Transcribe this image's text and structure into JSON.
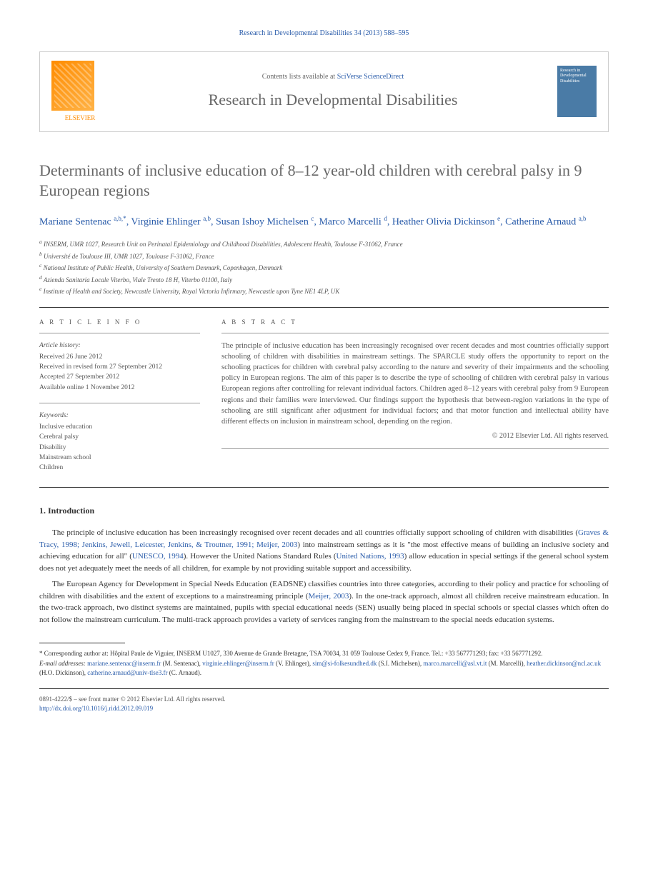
{
  "header": {
    "citation": "Research in Developmental Disabilities 34 (2013) 588–595",
    "contents_prefix": "Contents lists available at ",
    "contents_link": "SciVerse ScienceDirect",
    "journal_name": "Research in Developmental Disabilities",
    "publisher": "ELSEVIER",
    "cover_text": "Research in Developmental Disabilities"
  },
  "article": {
    "title": "Determinants of inclusive education of 8–12 year-old children with cerebral palsy in 9 European regions",
    "authors_html": "Mariane Sentenac <sup>a,b,*</sup>, Virginie Ehlinger <sup>a,b</sup>, Susan Ishoy Michelsen <sup>c</sup>, Marco Marcelli <sup>d</sup>, Heather Olivia Dickinson <sup>e</sup>, Catherine Arnaud <sup>a,b</sup>",
    "affiliations": [
      "a INSERM, UMR 1027, Research Unit on Perinatal Epidemiology and Childhood Disabilities, Adolescent Health, Toulouse F-31062, France",
      "b Université de Toulouse III, UMR 1027, Toulouse F-31062, France",
      "c National Institute of Public Health, University of Southern Denmark, Copenhagen, Denmark",
      "d Azienda Sanitaria Locale Viterbo, Viale Trento 18 H, Viterbo 01100, Italy",
      "e Institute of Health and Society, Newcastle University, Royal Victoria Infirmary, Newcastle upon Tyne NE1 4LP, UK"
    ]
  },
  "article_info": {
    "header": "A R T I C L E   I N F O",
    "history_label": "Article history:",
    "history": [
      "Received 26 June 2012",
      "Received in revised form 27 September 2012",
      "Accepted 27 September 2012",
      "Available online 1 November 2012"
    ],
    "keywords_label": "Keywords:",
    "keywords": [
      "Inclusive education",
      "Cerebral palsy",
      "Disability",
      "Mainstream school",
      "Children"
    ]
  },
  "abstract": {
    "header": "A B S T R A C T",
    "text": "The principle of inclusive education has been increasingly recognised over recent decades and most countries officially support schooling of children with disabilities in mainstream settings. The SPARCLE study offers the opportunity to report on the schooling practices for children with cerebral palsy according to the nature and severity of their impairments and the schooling policy in European regions. The aim of this paper is to describe the type of schooling of children with cerebral palsy in various European regions after controlling for relevant individual factors. Children aged 8–12 years with cerebral palsy from 9 European regions and their families were interviewed. Our findings support the hypothesis that between-region variations in the type of schooling are still significant after adjustment for individual factors; and that motor function and intellectual ability have different effects on inclusion in mainstream school, depending on the region.",
    "copyright": "© 2012 Elsevier Ltd. All rights reserved."
  },
  "body": {
    "section1_title": "1. Introduction",
    "para1_pre": "The principle of inclusive education has been increasingly recognised over recent decades and all countries officially support schooling of children with disabilities (",
    "para1_link1": "Graves & Tracy, 1998; Jenkins, Jewell, Leicester, Jenkins, & Troutner, 1991; Meijer, 2003",
    "para1_mid1": ") into mainstream settings as it is \"the most effective means of building an inclusive society and achieving education for all\" (",
    "para1_link2": "UNESCO, 1994",
    "para1_mid2": "). However the United Nations Standard Rules (",
    "para1_link3": "United Nations, 1993",
    "para1_post": ") allow education in special settings if the general school system does not yet adequately meet the needs of all children, for example by not providing suitable support and accessibility.",
    "para2_pre": "The European Agency for Development in Special Needs Education (EADSNE) classifies countries into three categories, according to their policy and practice for schooling of children with disabilities and the extent of exceptions to a mainstreaming principle (",
    "para2_link1": "Meijer, 2003",
    "para2_post": "). In the one-track approach, almost all children receive mainstream education. In the two-track approach, two distinct systems are maintained, pupils with special educational needs (SEN) usually being placed in special schools or special classes which often do not follow the mainstream curriculum. The multi-track approach provides a variety of services ranging from the mainstream to the special needs education systems."
  },
  "footnote": {
    "corresponding": "* Corresponding author at: Hôpital Paule de Viguier, INSERM U1027, 330 Avenue de Grande Bretagne, TSA 70034, 31 059 Toulouse Cedex 9, France. Tel.: +33 567771293; fax: +33 567771292.",
    "email_label": "E-mail addresses: ",
    "emails": [
      {
        "addr": "mariane.sentenac@inserm.fr",
        "name": "(M. Sentenac)"
      },
      {
        "addr": "virginie.ehlinger@inserm.fr",
        "name": "(V. Ehlinger)"
      },
      {
        "addr": "sim@si-folkesundhed.dk",
        "name": "(S.I. Michelsen)"
      },
      {
        "addr": "marco.marcelli@asl.vt.it",
        "name": "(M. Marcelli)"
      },
      {
        "addr": "heather.dickinson@ncl.ac.uk",
        "name": "(H.O. Dickinson)"
      },
      {
        "addr": "catherine.arnaud@univ-tlse3.fr",
        "name": "(C. Arnaud)"
      }
    ]
  },
  "footer": {
    "issn": "0891-4222/$ – see front matter © 2012 Elsevier Ltd. All rights reserved.",
    "doi": "http://dx.doi.org/10.1016/j.ridd.2012.09.019"
  },
  "colors": {
    "link": "#2a5caa",
    "text": "#333333",
    "muted": "#555555",
    "border": "#cccccc",
    "elsevier_orange": "#ff8c00",
    "cover_blue": "#4a7ba6"
  },
  "typography": {
    "title_fontsize": 22,
    "authors_fontsize": 14,
    "body_fontsize": 11,
    "abstract_fontsize": 10.5,
    "footnote_fontsize": 9,
    "affiliation_fontsize": 9
  }
}
